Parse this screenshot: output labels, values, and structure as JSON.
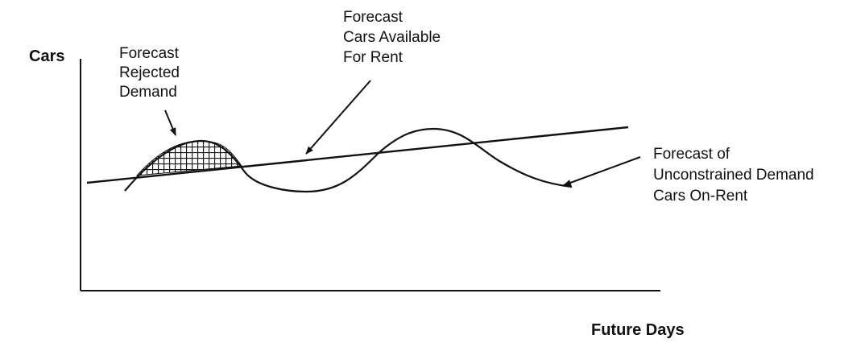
{
  "axes": {
    "y_label": "Cars",
    "x_label": "Future Days"
  },
  "annotations": {
    "rejected_demand": [
      "Forecast",
      "Rejected",
      "Demand"
    ],
    "cars_available": [
      "Forecast",
      "Cars Available",
      "For Rent"
    ],
    "unconstrained_demand": [
      "Forecast of",
      "Unconstrained Demand",
      "Cars On-Rent"
    ]
  },
  "colors": {
    "ink": "#111111",
    "background": "#ffffff"
  }
}
